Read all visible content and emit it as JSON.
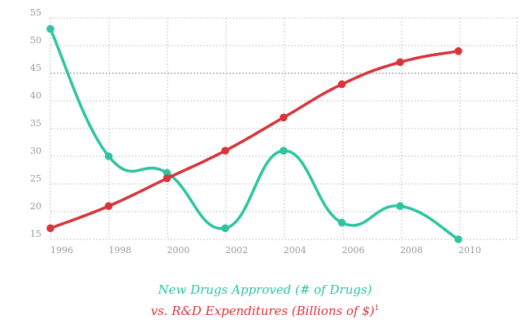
{
  "chart_data": {
    "type": "line",
    "x": [
      "1996",
      "1998",
      "2000",
      "2002",
      "2004",
      "2006",
      "2008",
      "2010"
    ],
    "y_ticks": [
      "15",
      "20",
      "25",
      "30",
      "35",
      "40",
      "45",
      "50",
      "55"
    ],
    "ylim": [
      15,
      55
    ],
    "grid": true,
    "series": [
      {
        "values": [
          53,
          30,
          27,
          17,
          31,
          18,
          21,
          15
        ],
        "color": "#2ec4a0"
      },
      {
        "values": [
          17,
          21,
          26,
          31,
          37,
          43,
          47,
          49
        ],
        "color": "#d8343b"
      }
    ],
    "caption_line1": "New Drugs Approved (# of Drugs)",
    "caption_line1_color": "#2ec4a0",
    "caption_line2": "vs. R&D Expenditures (Billions of $)",
    "caption_line2_color": "#d8343b",
    "footnote_marker": "1"
  }
}
